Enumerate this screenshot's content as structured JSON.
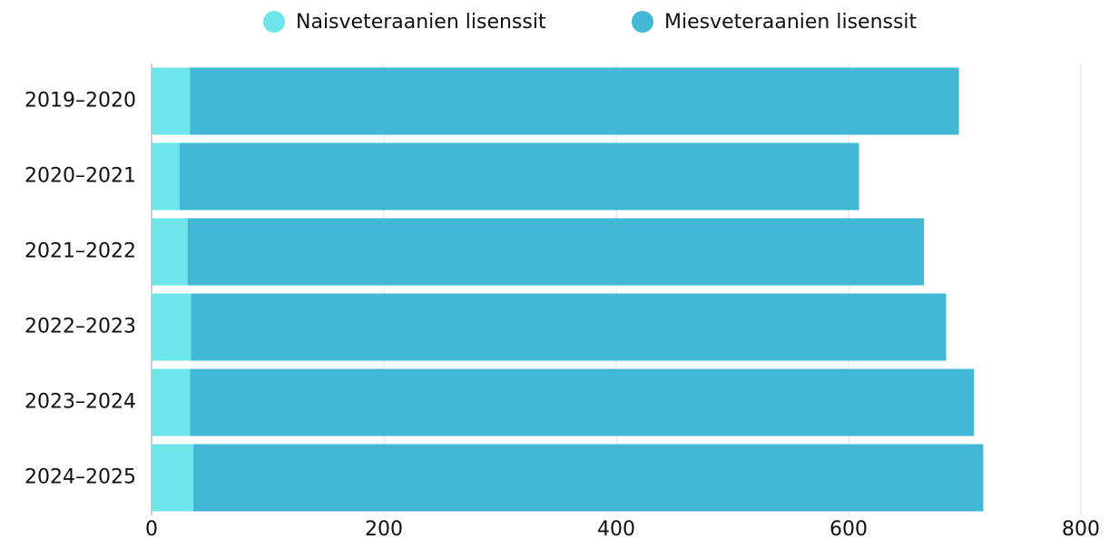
{
  "chart_data": {
    "type": "stacked-barh",
    "categories": [
      "2019–2020",
      "2020–2021",
      "2021–2022",
      "2022–2023",
      "2023–2024",
      "2024–2025"
    ],
    "series": [
      {
        "name": "Naisveteraanien lisenssit",
        "color": "#6ee5e8",
        "values": [
          33,
          24,
          31,
          34,
          33,
          36
        ]
      },
      {
        "name": "Miesveteraanien lisenssit",
        "color": "#42b7d6",
        "values": [
          662,
          585,
          634,
          650,
          675,
          680
        ]
      }
    ],
    "xlim": [
      0,
      800
    ],
    "xticks": [
      0,
      200,
      400,
      600,
      800
    ],
    "grid": true,
    "legend": "top"
  }
}
